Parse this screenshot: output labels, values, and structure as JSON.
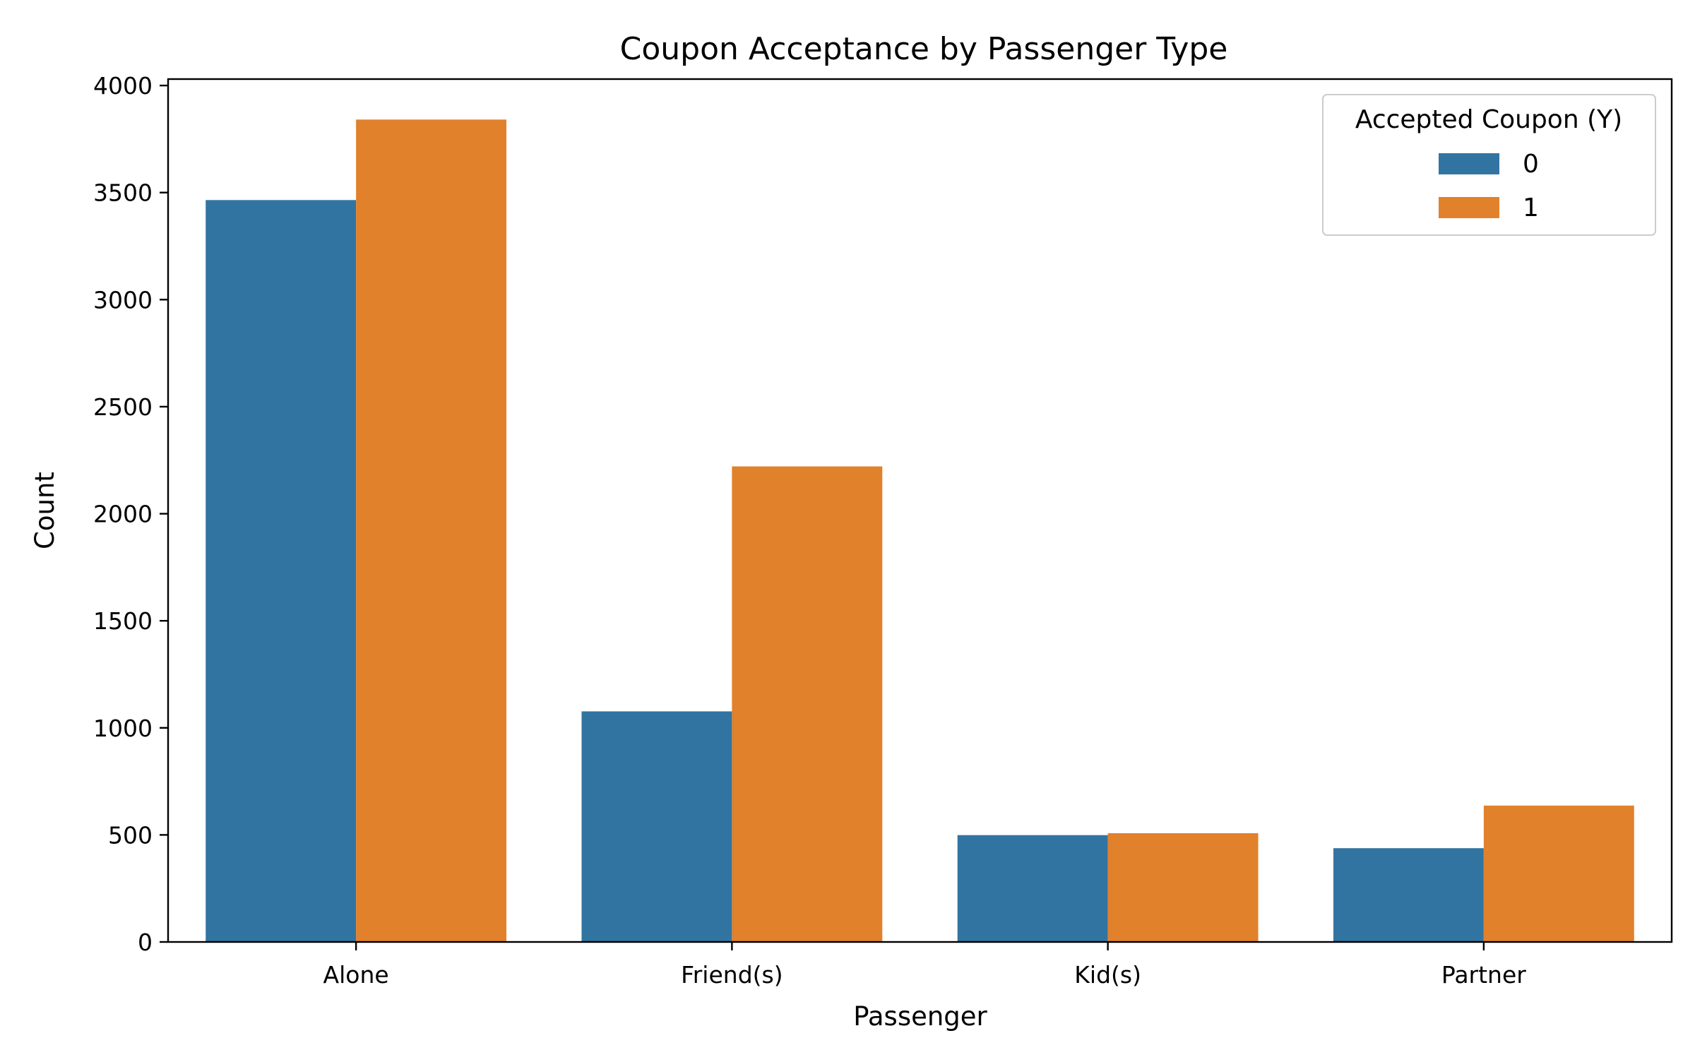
{
  "chart_data": {
    "type": "bar",
    "title": "Coupon Acceptance by Passenger Type",
    "xlabel": "Passenger",
    "ylabel": "Count",
    "categories": [
      "Alone",
      "Friend(s)",
      "Kid(s)",
      "Partner"
    ],
    "series": [
      {
        "name": "0",
        "color": "#3274a1",
        "values": [
          3465,
          1077,
          499,
          438
        ]
      },
      {
        "name": "1",
        "color": "#e1812c",
        "values": [
          3841,
          2221,
          508,
          637
        ]
      }
    ],
    "ylim": [
      0,
      4030
    ],
    "yticks": [
      0,
      500,
      1000,
      1500,
      2000,
      2500,
      3000,
      3500,
      4000
    ],
    "grid": false,
    "legend": {
      "title": "Accepted Coupon (Y)",
      "position": "top-right"
    }
  }
}
